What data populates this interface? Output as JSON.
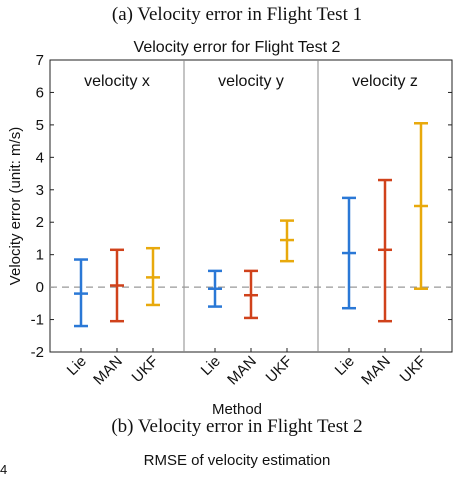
{
  "captions": {
    "a": "(a)  Velocity error in Flight Test 1",
    "b": "(b)  Velocity error in Flight Test 2",
    "next_chart_title": "RMSE of velocity estimation",
    "next_chart_tick": "4"
  },
  "chart_data": {
    "type": "errorbar",
    "title": "Velocity error for Flight Test 2",
    "xlabel": "Method",
    "ylabel": "Velocity error (unit: m/s)",
    "ylim": [
      -2,
      7
    ],
    "yticks": [
      "-2",
      "-1",
      "0",
      "1",
      "2",
      "3",
      "4",
      "5",
      "6",
      "7"
    ],
    "grid": false,
    "reference_line": {
      "y": 0,
      "style": "dashed"
    },
    "colors": {
      "Lie": "#2a78d6",
      "MAN": "#d0421b",
      "UKF": "#e8a90c"
    },
    "panels": [
      {
        "name": "velocity x",
        "categories": [
          "Lie",
          "MAN",
          "UKF"
        ],
        "points": [
          {
            "method": "Lie",
            "mean": -0.2,
            "low": -1.2,
            "high": 0.85
          },
          {
            "method": "MAN",
            "mean": 0.05,
            "low": -1.05,
            "high": 1.15
          },
          {
            "method": "UKF",
            "mean": 0.3,
            "low": -0.55,
            "high": 1.2
          }
        ]
      },
      {
        "name": "velocity y",
        "categories": [
          "Lie",
          "MAN",
          "UKF"
        ],
        "points": [
          {
            "method": "Lie",
            "mean": -0.05,
            "low": -0.6,
            "high": 0.5
          },
          {
            "method": "MAN",
            "mean": -0.25,
            "low": -0.95,
            "high": 0.5
          },
          {
            "method": "UKF",
            "mean": 1.45,
            "low": 0.8,
            "high": 2.05
          }
        ]
      },
      {
        "name": "velocity z",
        "categories": [
          "Lie",
          "MAN",
          "UKF"
        ],
        "points": [
          {
            "method": "Lie",
            "mean": 1.05,
            "low": -0.65,
            "high": 2.75
          },
          {
            "method": "MAN",
            "mean": 1.15,
            "low": -1.05,
            "high": 3.3
          },
          {
            "method": "UKF",
            "mean": 2.5,
            "low": -0.05,
            "high": 5.05
          }
        ]
      }
    ]
  }
}
